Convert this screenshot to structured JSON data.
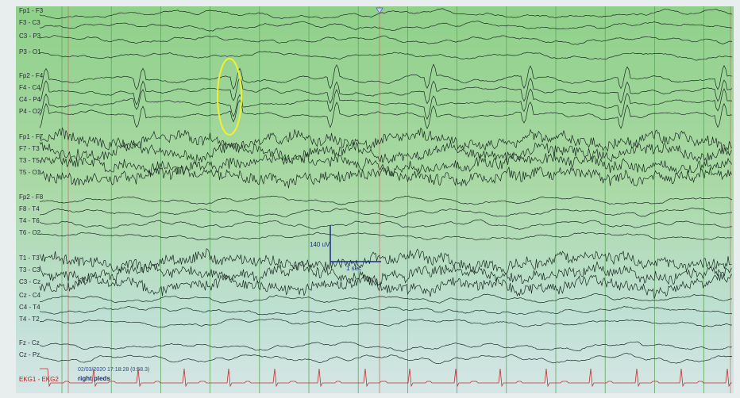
{
  "channels": [
    "Fp1 - F3",
    "F3 - C3",
    "C3 - P3",
    "P3 - O1",
    "Fp2 - F4",
    "F4 - C4",
    "C4 - P4",
    "P4 - O2",
    "Fp1 - F7",
    "F7 - T3",
    "T3 - T5",
    "T5 - O1",
    "Fp2 - F8",
    "F8 - T4",
    "T4 - T6",
    "T6 - O2",
    "T1 - T3",
    "T3 - C3",
    "C3 - Cz",
    "Cz - C4",
    "C4 - T4",
    "T4 - T2",
    "Fz - Cz",
    "Cz - Pz",
    "EKG1 - EKG2"
  ],
  "calibration": {
    "amplitude": "140 uV",
    "time": "1 sec"
  },
  "footer": {
    "timestamp": "02/03/2020 17:18:28 (0:58.3)",
    "note": "right pleds"
  }
}
